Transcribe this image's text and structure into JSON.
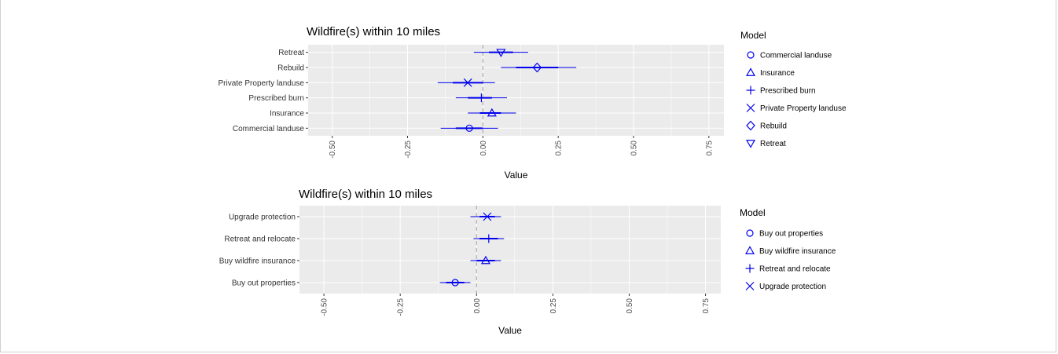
{
  "colors": {
    "panel": "#ebebeb",
    "grid": "#ffffff",
    "marker": "#0000ee",
    "zero_line": "#b3b3b3"
  },
  "chart_data": [
    {
      "type": "scatter",
      "subtype": "coefficient-plot",
      "title": "Wildfire(s) within 10 miles",
      "xlabel": "Value",
      "ylabel": "",
      "xlim": [
        -0.58,
        0.8
      ],
      "xticks": [
        "-0.50",
        "-0.25",
        "0.00",
        "0.25",
        "0.50",
        "0.75"
      ],
      "xtick_values": [
        -0.5,
        -0.25,
        0,
        0.25,
        0.5,
        0.75
      ],
      "zero_line": true,
      "grid": true,
      "legend_position": "right",
      "legend_title": "Model",
      "categories": [
        "Retreat",
        "Rebuild",
        "Private Property landuse",
        "Prescribed burn",
        "Insurance",
        "Commercial landuse"
      ],
      "series": [
        {
          "name": "Retreat",
          "shape": "triangle-down",
          "estimate": 0.06,
          "ci_inner": [
            0.02,
            0.1
          ],
          "ci_outer": [
            -0.03,
            0.15
          ]
        },
        {
          "name": "Rebuild",
          "shape": "diamond",
          "estimate": 0.18,
          "ci_inner": [
            0.11,
            0.25
          ],
          "ci_outer": [
            0.06,
            0.31
          ]
        },
        {
          "name": "Private Property landuse",
          "shape": "x",
          "estimate": -0.05,
          "ci_inner": [
            -0.1,
            0.0
          ],
          "ci_outer": [
            -0.15,
            0.04
          ]
        },
        {
          "name": "Prescribed burn",
          "shape": "plus",
          "estimate": -0.005,
          "ci_inner": [
            -0.05,
            0.03
          ],
          "ci_outer": [
            -0.09,
            0.08
          ]
        },
        {
          "name": "Insurance",
          "shape": "triangle-up",
          "estimate": 0.03,
          "ci_inner": [
            -0.01,
            0.06
          ],
          "ci_outer": [
            -0.05,
            0.11
          ]
        },
        {
          "name": "Commercial landuse",
          "shape": "circle",
          "estimate": -0.045,
          "ci_inner": [
            -0.09,
            0.0
          ],
          "ci_outer": [
            -0.14,
            0.05
          ]
        }
      ],
      "legend": [
        "Commercial landuse",
        "Insurance",
        "Prescribed burn",
        "Private Property landuse",
        "Rebuild",
        "Retreat"
      ],
      "legend_shapes": [
        "circle",
        "triangle-up",
        "plus",
        "x",
        "diamond",
        "triangle-down"
      ]
    },
    {
      "type": "scatter",
      "subtype": "coefficient-plot",
      "title": "Wildfire(s) within 10 miles",
      "xlabel": "Value",
      "ylabel": "",
      "xlim": [
        -0.58,
        0.8
      ],
      "xticks": [
        "-0.50",
        "-0.25",
        "0.00",
        "0.25",
        "0.50",
        "0.75"
      ],
      "xtick_values": [
        -0.5,
        -0.25,
        0,
        0.25,
        0.5,
        0.75
      ],
      "zero_line": true,
      "grid": true,
      "legend_position": "right",
      "legend_title": "Model",
      "categories": [
        "Upgrade protection",
        "Retreat and relocate",
        "Buy wildfire insurance",
        "Buy out properties"
      ],
      "series": [
        {
          "name": "Upgrade protection",
          "shape": "x",
          "estimate": 0.035,
          "ci_inner": [
            0.01,
            0.06
          ],
          "ci_outer": [
            -0.02,
            0.08
          ]
        },
        {
          "name": "Retreat and relocate",
          "shape": "plus",
          "estimate": 0.04,
          "ci_inner": [
            0.01,
            0.07
          ],
          "ci_outer": [
            -0.01,
            0.09
          ]
        },
        {
          "name": "Buy wildfire insurance",
          "shape": "triangle-up",
          "estimate": 0.03,
          "ci_inner": [
            0.0,
            0.06
          ],
          "ci_outer": [
            -0.02,
            0.08
          ]
        },
        {
          "name": "Buy out properties",
          "shape": "circle",
          "estimate": -0.07,
          "ci_inner": [
            -0.1,
            -0.04
          ],
          "ci_outer": [
            -0.12,
            -0.02
          ]
        }
      ],
      "legend": [
        "Buy out properties",
        "Buy wildfire insurance",
        "Retreat and relocate",
        "Upgrade protection"
      ],
      "legend_shapes": [
        "circle",
        "triangle-up",
        "plus",
        "x"
      ]
    }
  ]
}
